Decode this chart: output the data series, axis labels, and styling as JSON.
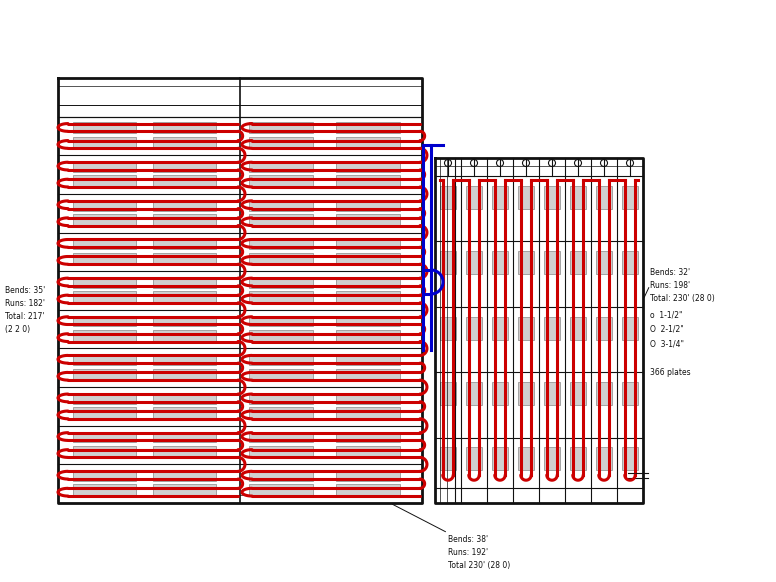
{
  "bg": "#ffffff",
  "lc": "#111111",
  "rc": "#cc0000",
  "bc": "#0000cc",
  "gc": "#c0c0c0",
  "lw_frame": 2.0,
  "lw_inner": 0.8,
  "lw_red": 2.2,
  "lw_blue": 2.2,
  "label_left": "Bends: 35'\nRuns: 182'\nTotal: 217'\n(2 2 0)",
  "label_bottom": "Bends: 38'\nRuns: 192'\nTotal 230' (28 0)",
  "label_right1": "Bends: 32'\nRuns: 198'\nTotal: 230' (28 0)",
  "label_right2": "o  1-1/2\"\nO  2-1/2\"\nO  3-1/4\"\n\n366 plates"
}
